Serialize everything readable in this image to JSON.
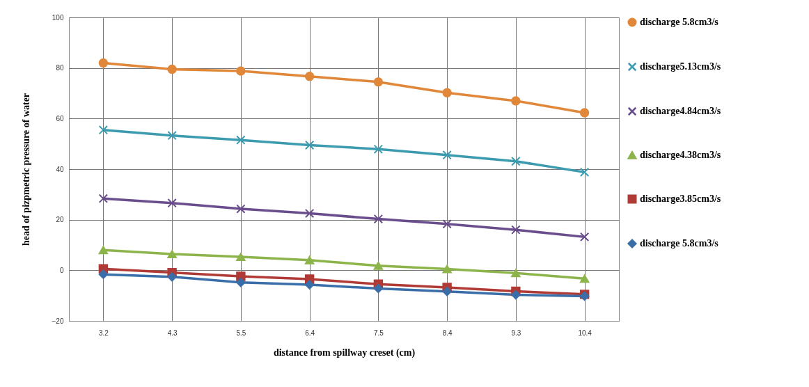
{
  "chart_data": {
    "type": "line",
    "xlabel": "distance from spillway creset  (cm)",
    "ylabel": "head of pizpmetric pressure of water",
    "categories": [
      "3.2",
      "4.3",
      "5.5",
      "6.4",
      "7.5",
      "8.4",
      "9.3",
      "10.4"
    ],
    "ylim": [
      -20,
      100
    ],
    "yticks": [
      -20,
      0,
      20,
      40,
      60,
      80,
      100
    ],
    "grid": true,
    "legend": "right",
    "series": [
      {
        "name": "discharge 5.8cm3/s",
        "color": "#e0873a",
        "marker": "circle",
        "values": [
          82,
          79.5,
          78.8,
          76.7,
          74.5,
          70.2,
          67,
          62.3
        ]
      },
      {
        "name": "discharge5.13cm3/s",
        "color": "#3d9bb0",
        "marker": "cross",
        "values": [
          55.5,
          53.3,
          51.5,
          49.5,
          47.9,
          45.6,
          43.1,
          38.8
        ]
      },
      {
        "name": "discharge4.84cm3/s",
        "color": "#6a4d8c",
        "marker": "cross",
        "values": [
          28.4,
          26.6,
          24.3,
          22.5,
          20.3,
          18.3,
          16,
          13.2
        ]
      },
      {
        "name": "discharge4.38cm3/s",
        "color": "#8db44a",
        "marker": "triangle",
        "values": [
          8,
          6.4,
          5.3,
          4,
          1.8,
          0.5,
          -1.1,
          -3.3
        ]
      },
      {
        "name": "discharge3.85cm3/s",
        "color": "#b03a35",
        "marker": "square",
        "values": [
          0.6,
          -0.9,
          -2.4,
          -3.5,
          -5.5,
          -6.8,
          -8.3,
          -9.5
        ]
      },
      {
        "name": "discharge 5.8cm3/s",
        "color": "#3a6ea8",
        "marker": "diamond",
        "values": [
          -1.6,
          -2.6,
          -4.8,
          -5.7,
          -7.2,
          -8.4,
          -9.7,
          -10.2
        ]
      }
    ]
  }
}
